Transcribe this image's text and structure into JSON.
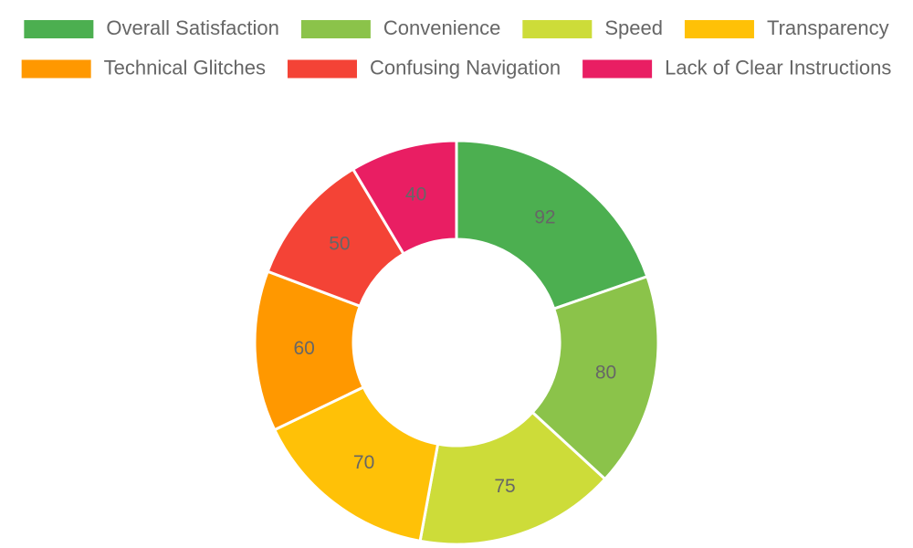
{
  "chart_data": {
    "type": "doughnut",
    "categories": [
      "Overall Satisfaction",
      "Convenience",
      "Speed",
      "Transparency",
      "Technical Glitches",
      "Confusing Navigation",
      "Lack of Clear Instructions"
    ],
    "values": [
      92,
      80,
      75,
      70,
      60,
      50,
      40
    ],
    "colors": [
      "#4caf50",
      "#8bc34a",
      "#cddc39",
      "#ffc107",
      "#ff9800",
      "#f44336",
      "#e91e63"
    ],
    "legend": "top"
  }
}
